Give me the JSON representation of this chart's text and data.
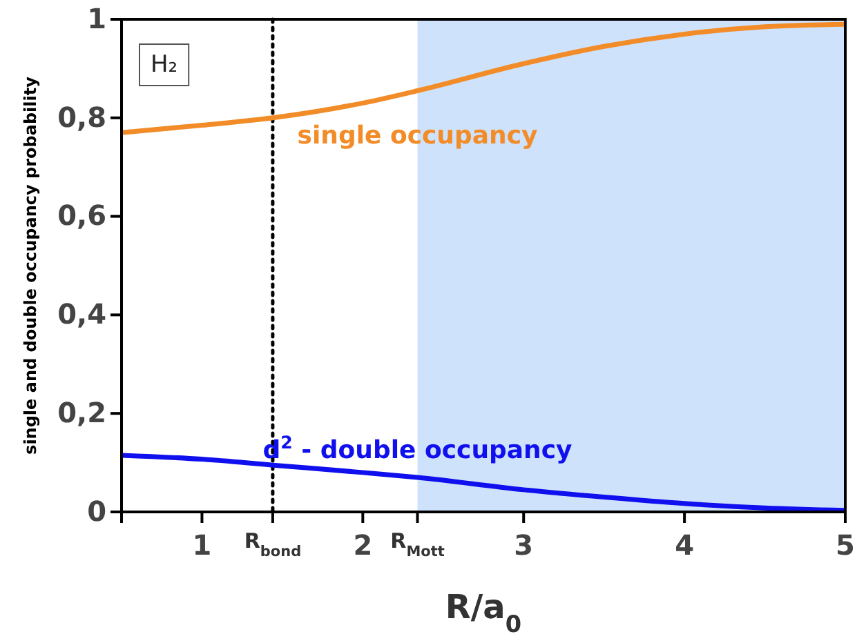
{
  "chart_data": {
    "type": "line",
    "xlabel": "R/a$_{0}$",
    "ylabel": "single and double occupancy probability",
    "x": [
      0.5,
      1,
      1.44,
      2,
      2.34,
      3,
      3.5,
      4,
      4.5,
      5
    ],
    "series": [
      {
        "name": "single occupancy",
        "color": "#f28c28",
        "values": [
          0.77,
          0.785,
          0.8,
          0.83,
          0.855,
          0.91,
          0.945,
          0.97,
          0.985,
          0.99
        ]
      },
      {
        "name": "d$^{2}$ - double occupancy",
        "color": "#1010ee",
        "values": [
          0.115,
          0.107,
          0.095,
          0.08,
          0.07,
          0.045,
          0.03,
          0.017,
          0.008,
          0.003
        ]
      }
    ],
    "xlim": [
      0.5,
      5
    ],
    "ylim": [
      0,
      1
    ],
    "xticks": [
      1,
      {
        "value": 1.44,
        "label": "R$_{bond}$"
      },
      2,
      {
        "value": 2.34,
        "label": "R$_{Mott}$"
      },
      3,
      4,
      5
    ],
    "yticks": [
      {
        "value": 0,
        "label": "0"
      },
      {
        "value": 0.2,
        "label": "0,2"
      },
      {
        "value": 0.4,
        "label": "0,4"
      },
      {
        "value": 0.6,
        "label": "0,6"
      },
      {
        "value": 0.8,
        "label": "0,8"
      },
      {
        "value": 1,
        "label": "1"
      }
    ],
    "ref_lines": [
      {
        "axis": "x",
        "value": 1.44,
        "line_style": "dotted",
        "color": "#000000"
      }
    ],
    "bands": [
      {
        "axis": "x",
        "from": 2.34,
        "to": 5,
        "color": "#cfe2fb"
      }
    ],
    "annotations": [
      "H₂"
    ],
    "grid": false,
    "legend": false,
    "marker": "none",
    "line_style": "solid"
  }
}
